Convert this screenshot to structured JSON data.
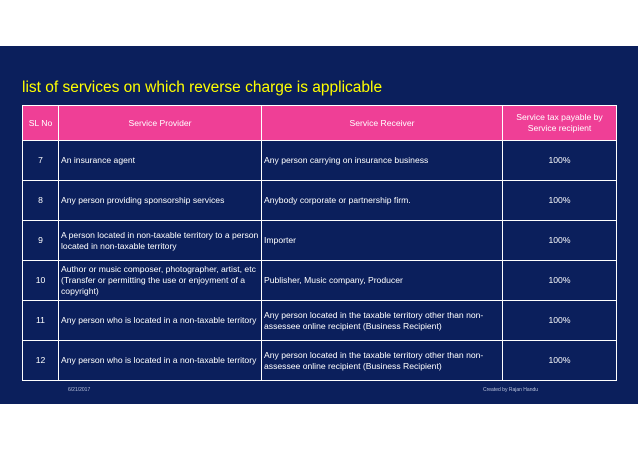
{
  "title": "list of services on which reverse charge is applicable",
  "table": {
    "headers": [
      "SL No",
      "Service Provider",
      "Service Receiver",
      "Service tax payable by Service recipient"
    ],
    "rows": [
      {
        "sl": "7",
        "provider": "An insurance agent",
        "receiver": "Any person carrying on insurance business",
        "pct": "100%"
      },
      {
        "sl": "8",
        "provider": "Any person providing sponsorship services",
        "receiver": "Anybody corporate or partnership firm.",
        "pct": "100%"
      },
      {
        "sl": "9",
        "provider": "A person located in non-taxable territory to a person located in non-taxable territory",
        "receiver": "Importer",
        "pct": "100%"
      },
      {
        "sl": "10",
        "provider": "Author or music composer, photographer, artist, etc (Transfer or permitting the use or enjoyment of a copyright)",
        "receiver": "Publisher, Music company, Producer",
        "pct": "100%"
      },
      {
        "sl": "11",
        "provider": "Any person who is located in a non-taxable territory",
        "receiver": "Any person located in the taxable territory other than non-assessee online recipient (Business Recipient)",
        "pct": "100%"
      },
      {
        "sl": "12",
        "provider": "Any person who is located in a non-taxable territory",
        "receiver": "Any person located in the taxable territory other than non-assessee online recipient (Business Recipient)",
        "pct": "100%"
      }
    ]
  },
  "footer": {
    "date": "6/21/2017",
    "credit": "Created by Rajan Handu"
  }
}
